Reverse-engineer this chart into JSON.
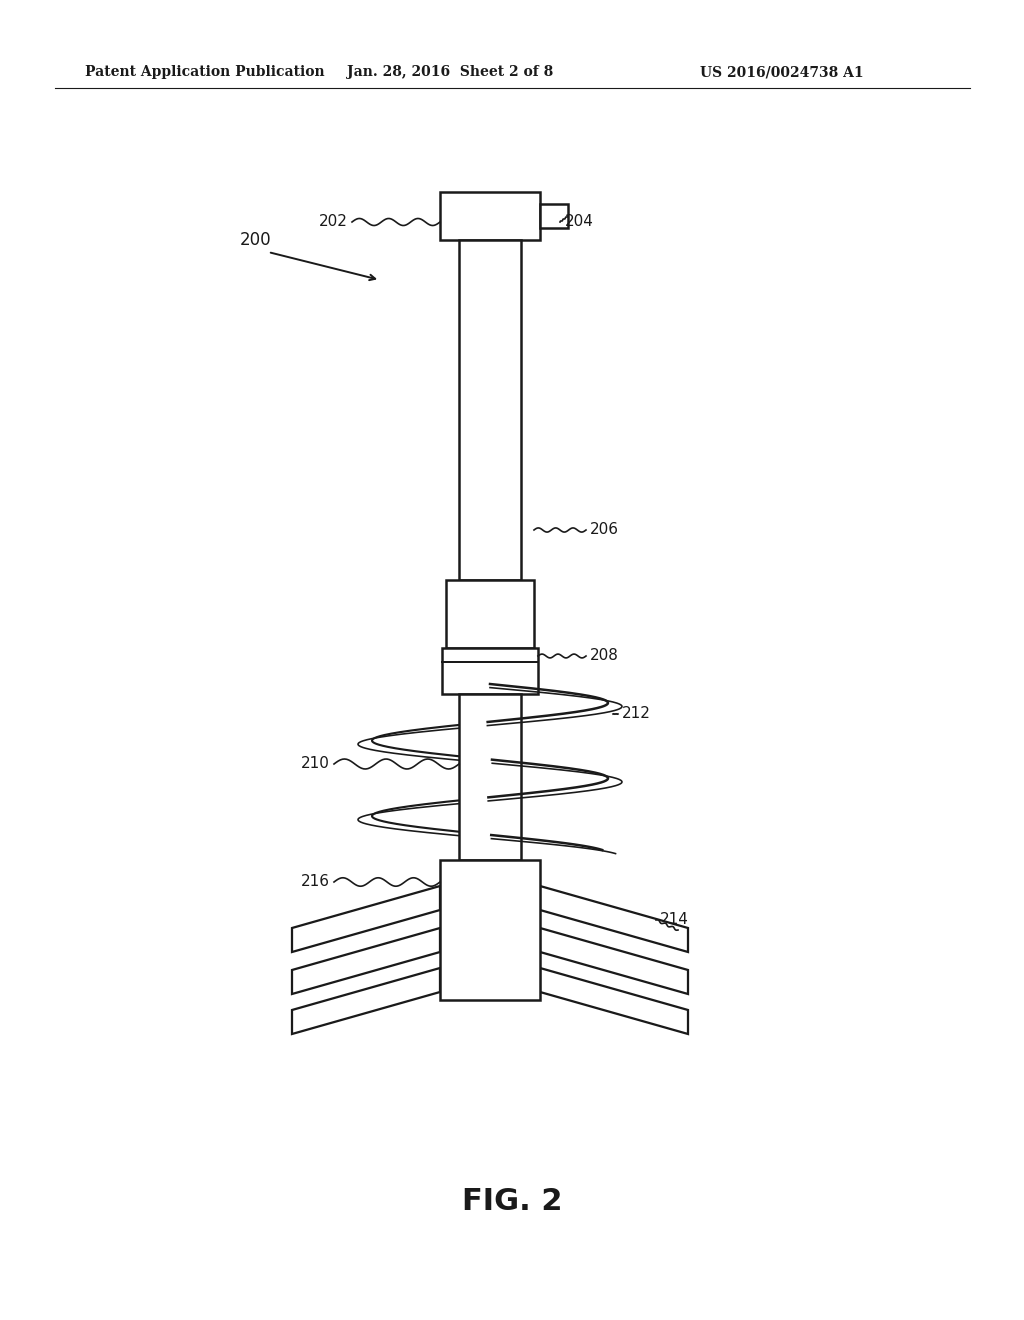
{
  "title": "FIG. 2",
  "header_left": "Patent Application Publication",
  "header_mid": "Jan. 28, 2016  Sheet 2 of 8",
  "header_right": "US 2016/0024738 A1",
  "bg_color": "#ffffff",
  "line_color": "#1a1a1a",
  "label_200": "200",
  "label_202": "202",
  "label_204": "204",
  "label_206": "206",
  "label_208": "208",
  "label_210": "210",
  "label_212": "212",
  "label_214": "214",
  "label_216": "216"
}
